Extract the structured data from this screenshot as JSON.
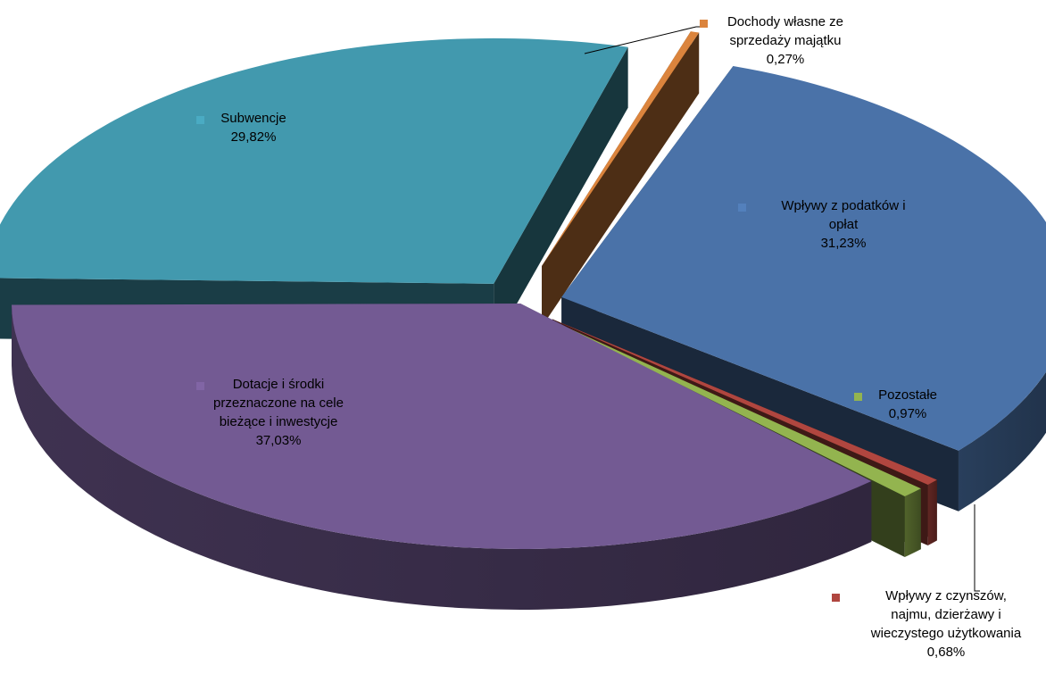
{
  "chart_data": {
    "type": "pie",
    "title": "",
    "slices": [
      {
        "key": "podatki",
        "lines": [
          "Wpływy z podatków i",
          "opłat"
        ],
        "percent_label": "31,23%",
        "value": 31.23,
        "color": "#4A72A8"
      },
      {
        "key": "czynsze",
        "lines": [
          "Wpływy z czynszów,",
          "najmu, dzierżawy i",
          "wieczystego użytkowania"
        ],
        "percent_label": "0,68%",
        "value": 0.68,
        "color": "#B0463F"
      },
      {
        "key": "pozostale",
        "lines": [
          "Pozostałe"
        ],
        "percent_label": "0,97%",
        "value": 0.97,
        "color": "#93B44F"
      },
      {
        "key": "dotacje",
        "lines": [
          "Dotacje i środki",
          "przeznaczone na cele",
          "bieżące i inwestycje"
        ],
        "percent_label": "37,03%",
        "value": 37.03,
        "color": "#735A93"
      },
      {
        "key": "subwencje",
        "lines": [
          "Subwencje"
        ],
        "percent_label": "29,82%",
        "value": 29.82,
        "color": "#4299AE"
      },
      {
        "key": "majatek",
        "lines": [
          "Dochody własne ze",
          "sprzedaży majątku"
        ],
        "percent_label": "0,27%",
        "value": 0.27,
        "color": "#DB843D"
      }
    ],
    "style": "3d-exploded",
    "legend": "none",
    "data_labels": "inside-and-callout"
  }
}
